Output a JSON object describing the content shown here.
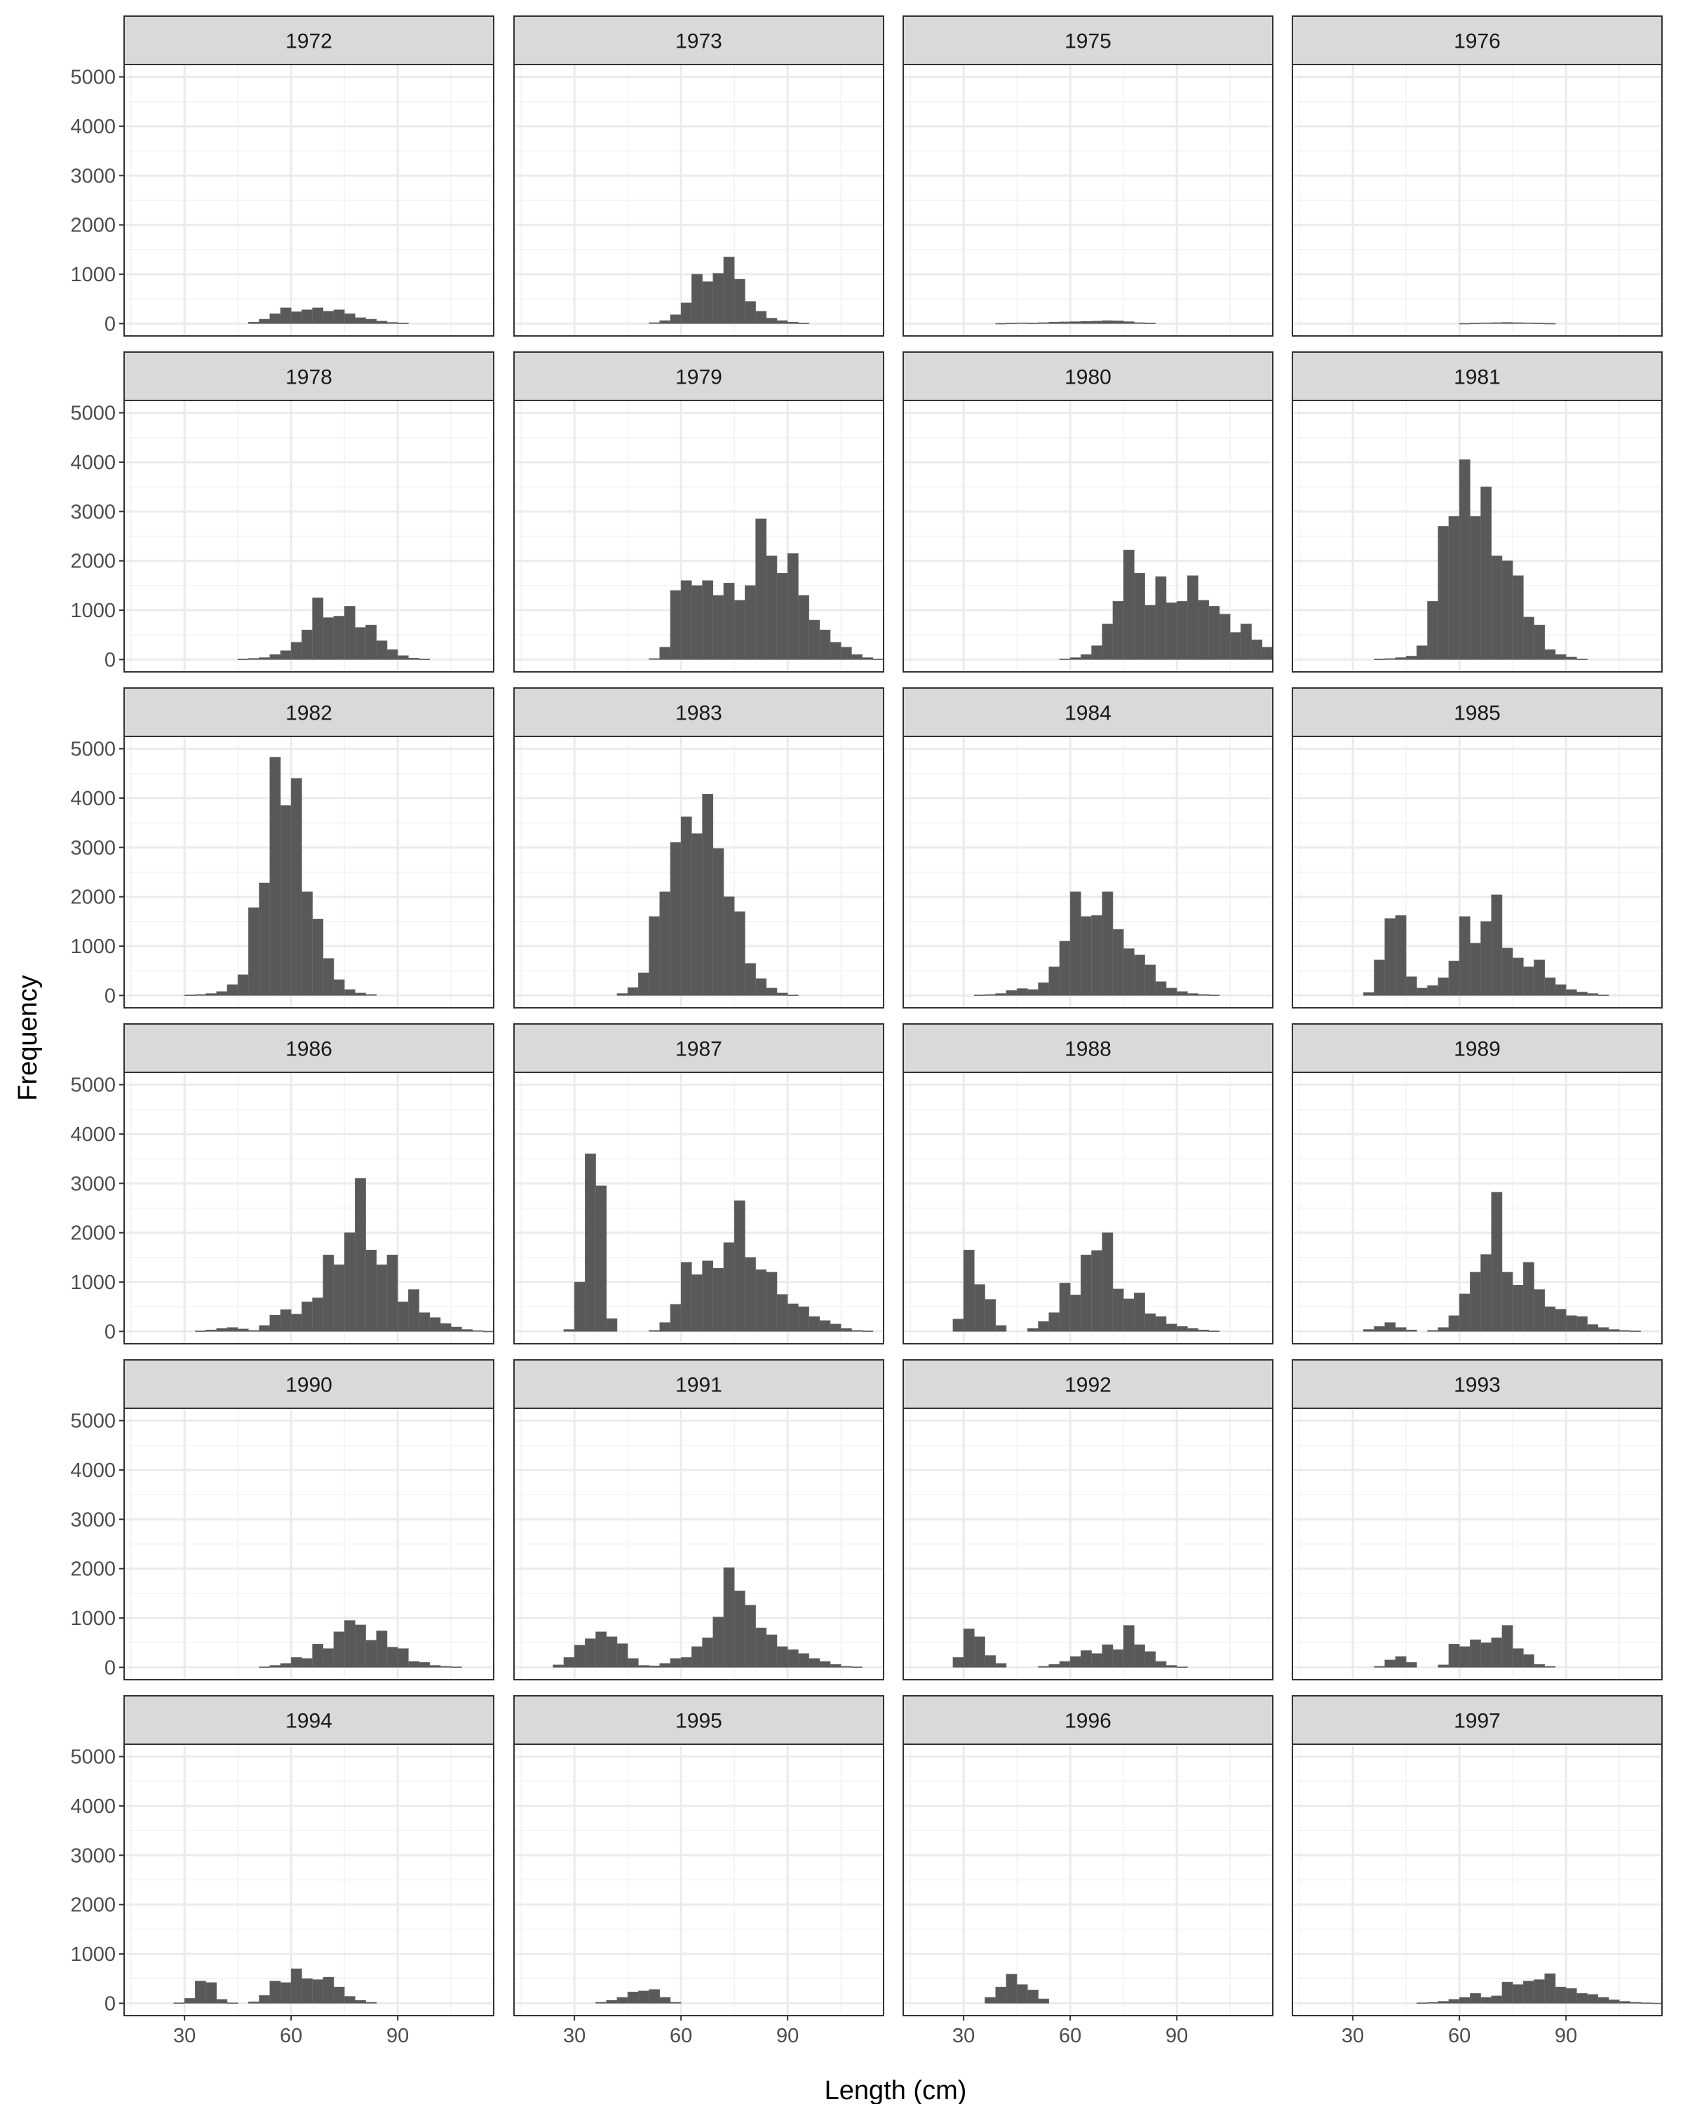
{
  "chart_data": {
    "type": "bar",
    "chart_kind": "faceted-histogram",
    "xlabel": "Length (cm)",
    "ylabel": "Frequency",
    "x_ticks": [
      30,
      60,
      90
    ],
    "y_ticks": [
      0,
      1000,
      2000,
      3000,
      4000,
      5000
    ],
    "xlim": [
      13,
      117
    ],
    "ylim": [
      -250,
      5250
    ],
    "grid": true,
    "bin_width": 3,
    "bin_start": 18,
    "bar_color": "#595959",
    "strip_fill": "#d9d9d9",
    "panels": [
      {
        "year": "1972",
        "values": [
          0,
          0,
          0,
          0,
          0,
          0,
          0,
          0,
          0,
          0,
          30,
          90,
          200,
          320,
          240,
          280,
          320,
          250,
          280,
          200,
          120,
          90,
          50,
          25,
          10,
          0,
          0,
          0,
          0,
          0,
          0,
          0,
          0
        ]
      },
      {
        "year": "1973",
        "values": [
          0,
          0,
          0,
          0,
          0,
          0,
          0,
          0,
          0,
          0,
          0,
          20,
          60,
          180,
          420,
          1000,
          850,
          1020,
          1350,
          900,
          450,
          250,
          110,
          60,
          30,
          10,
          0,
          0,
          0,
          0,
          0,
          0,
          0
        ]
      },
      {
        "year": "1975",
        "values": [
          0,
          0,
          0,
          0,
          0,
          0,
          0,
          5,
          10,
          15,
          10,
          20,
          30,
          35,
          40,
          45,
          50,
          60,
          55,
          40,
          20,
          10,
          0,
          0,
          0,
          0,
          0,
          0,
          0,
          0,
          0,
          0,
          0
        ]
      },
      {
        "year": "1976",
        "values": [
          0,
          0,
          0,
          0,
          0,
          0,
          0,
          0,
          0,
          0,
          0,
          0,
          0,
          0,
          5,
          10,
          15,
          20,
          25,
          20,
          15,
          10,
          5,
          0,
          0,
          0,
          0,
          0,
          0,
          0,
          0,
          0,
          0
        ]
      },
      {
        "year": "1978",
        "values": [
          0,
          0,
          0,
          0,
          0,
          0,
          0,
          0,
          0,
          10,
          25,
          40,
          100,
          180,
          350,
          600,
          1250,
          850,
          880,
          1080,
          650,
          700,
          380,
          200,
          80,
          30,
          10,
          0,
          0,
          0,
          0,
          0,
          0
        ]
      },
      {
        "year": "1979",
        "values": [
          0,
          0,
          0,
          0,
          0,
          0,
          0,
          0,
          0,
          0,
          0,
          20,
          250,
          1400,
          1600,
          1500,
          1600,
          1300,
          1550,
          1200,
          1500,
          2850,
          2100,
          1750,
          2150,
          1300,
          800,
          600,
          350,
          250,
          100,
          40,
          10
        ]
      },
      {
        "year": "1980",
        "values": [
          0,
          0,
          0,
          0,
          0,
          0,
          0,
          0,
          0,
          0,
          0,
          0,
          0,
          10,
          40,
          100,
          280,
          720,
          1180,
          2220,
          1750,
          1100,
          1680,
          1150,
          1180,
          1700,
          1200,
          1080,
          920,
          550,
          720,
          400,
          250
        ]
      },
      {
        "year": "1981",
        "values": [
          0,
          0,
          0,
          0,
          0,
          0,
          10,
          20,
          40,
          70,
          280,
          1180,
          2700,
          2900,
          4050,
          2900,
          3500,
          2100,
          2000,
          1700,
          860,
          700,
          200,
          100,
          50,
          10,
          0,
          0,
          0,
          0,
          0,
          0,
          0
        ]
      },
      {
        "year": "1982",
        "values": [
          0,
          0,
          0,
          0,
          10,
          20,
          40,
          80,
          220,
          420,
          1780,
          2280,
          4830,
          3850,
          4400,
          2100,
          1550,
          750,
          320,
          120,
          50,
          20,
          0,
          0,
          0,
          0,
          0,
          0,
          0,
          0,
          0,
          0,
          0
        ]
      },
      {
        "year": "1983",
        "values": [
          0,
          0,
          0,
          0,
          0,
          0,
          0,
          0,
          40,
          160,
          460,
          1600,
          2100,
          3100,
          3620,
          3280,
          4080,
          2980,
          2000,
          1700,
          650,
          340,
          150,
          50,
          10,
          0,
          0,
          0,
          0,
          0,
          0,
          0,
          0
        ]
      },
      {
        "year": "1984",
        "values": [
          0,
          0,
          0,
          0,
          0,
          10,
          20,
          40,
          100,
          140,
          120,
          260,
          580,
          1100,
          2100,
          1600,
          1620,
          2100,
          1340,
          950,
          820,
          620,
          280,
          150,
          80,
          40,
          20,
          10,
          0,
          0,
          0,
          0,
          0
        ]
      },
      {
        "year": "1985",
        "values": [
          0,
          0,
          0,
          0,
          0,
          60,
          720,
          1560,
          1620,
          380,
          150,
          200,
          360,
          700,
          1600,
          1060,
          1500,
          2040,
          960,
          760,
          580,
          720,
          360,
          220,
          120,
          70,
          40,
          10,
          0,
          0,
          0,
          0,
          0
        ]
      },
      {
        "year": "1986",
        "values": [
          0,
          0,
          0,
          0,
          0,
          10,
          30,
          60,
          80,
          50,
          20,
          120,
          330,
          440,
          350,
          600,
          680,
          1550,
          1350,
          2000,
          3100,
          1650,
          1350,
          1550,
          600,
          850,
          380,
          280,
          160,
          90,
          40,
          15,
          5
        ]
      },
      {
        "year": "1987",
        "values": [
          0,
          0,
          0,
          40,
          1000,
          3600,
          2950,
          260,
          0,
          0,
          0,
          20,
          180,
          550,
          1400,
          1150,
          1430,
          1280,
          1800,
          2650,
          1500,
          1250,
          1200,
          750,
          560,
          500,
          300,
          220,
          150,
          60,
          20,
          10,
          0
        ]
      },
      {
        "year": "1988",
        "values": [
          0,
          0,
          0,
          250,
          1650,
          950,
          650,
          120,
          0,
          0,
          60,
          200,
          380,
          980,
          740,
          1550,
          1640,
          2000,
          860,
          660,
          780,
          360,
          300,
          150,
          100,
          60,
          30,
          10,
          0,
          0,
          0,
          0,
          0
        ]
      },
      {
        "year": "1989",
        "values": [
          0,
          0,
          0,
          0,
          0,
          40,
          100,
          180,
          80,
          30,
          0,
          20,
          80,
          320,
          760,
          1200,
          1560,
          2820,
          1200,
          940,
          1400,
          850,
          500,
          450,
          320,
          300,
          140,
          80,
          40,
          20,
          10,
          0,
          0
        ]
      },
      {
        "year": "1990",
        "values": [
          0,
          0,
          0,
          0,
          0,
          0,
          0,
          0,
          0,
          0,
          0,
          10,
          40,
          80,
          200,
          180,
          470,
          380,
          720,
          950,
          860,
          550,
          740,
          410,
          380,
          120,
          100,
          40,
          20,
          10,
          0,
          0,
          0
        ]
      },
      {
        "year": "1991",
        "values": [
          0,
          0,
          50,
          200,
          450,
          580,
          720,
          620,
          480,
          180,
          40,
          30,
          80,
          180,
          200,
          420,
          600,
          1020,
          2020,
          1550,
          1260,
          800,
          660,
          420,
          360,
          280,
          180,
          120,
          60,
          20,
          10,
          0,
          0
        ]
      },
      {
        "year": "1992",
        "values": [
          0,
          0,
          0,
          200,
          780,
          620,
          240,
          80,
          0,
          0,
          0,
          20,
          60,
          120,
          220,
          340,
          280,
          460,
          360,
          850,
          460,
          320,
          120,
          40,
          10,
          0,
          0,
          0,
          0,
          0,
          0,
          0,
          0
        ]
      },
      {
        "year": "1993",
        "values": [
          0,
          0,
          0,
          0,
          0,
          0,
          20,
          150,
          220,
          100,
          0,
          0,
          50,
          470,
          420,
          560,
          500,
          600,
          850,
          380,
          260,
          60,
          20,
          0,
          0,
          0,
          0,
          0,
          0,
          0,
          0,
          0,
          0
        ]
      },
      {
        "year": "1994",
        "values": [
          0,
          0,
          0,
          10,
          100,
          450,
          420,
          80,
          10,
          0,
          30,
          160,
          450,
          420,
          700,
          500,
          480,
          530,
          330,
          140,
          60,
          20,
          0,
          0,
          0,
          0,
          0,
          0,
          0,
          0,
          0,
          0,
          0
        ]
      },
      {
        "year": "1995",
        "values": [
          0,
          0,
          0,
          0,
          0,
          0,
          20,
          60,
          120,
          230,
          250,
          280,
          120,
          20,
          0,
          0,
          0,
          0,
          0,
          0,
          0,
          0,
          0,
          0,
          0,
          0,
          0,
          0,
          0,
          0,
          0,
          0,
          0
        ]
      },
      {
        "year": "1996",
        "values": [
          0,
          0,
          0,
          0,
          0,
          0,
          120,
          330,
          590,
          380,
          270,
          90,
          0,
          0,
          0,
          0,
          0,
          0,
          0,
          0,
          0,
          0,
          0,
          0,
          0,
          0,
          0,
          0,
          0,
          0,
          0,
          0,
          0
        ]
      },
      {
        "year": "1997",
        "values": [
          0,
          0,
          0,
          0,
          0,
          0,
          0,
          0,
          0,
          0,
          10,
          20,
          40,
          80,
          120,
          200,
          120,
          150,
          430,
          380,
          450,
          480,
          600,
          330,
          300,
          200,
          180,
          120,
          70,
          40,
          20,
          10,
          5
        ]
      }
    ]
  }
}
